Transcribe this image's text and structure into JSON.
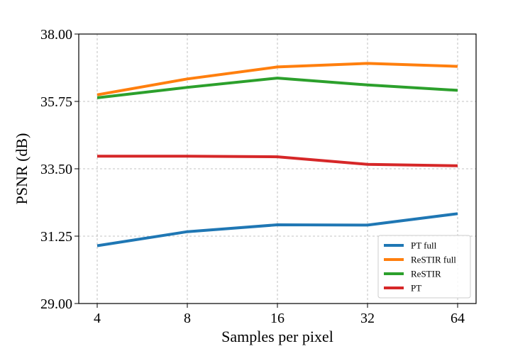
{
  "chart_data": {
    "type": "line",
    "title": "",
    "xlabel": "Samples per pixel",
    "ylabel": "PSNR (dB)",
    "x_scale": "log2",
    "categories": [
      "4",
      "8",
      "16",
      "32",
      "64"
    ],
    "x": [
      4,
      8,
      16,
      32,
      64
    ],
    "ylim": [
      29.0,
      38.0
    ],
    "yticks": [
      "29.00",
      "31.25",
      "33.50",
      "35.75",
      "38.00"
    ],
    "ytick_values": [
      29.0,
      31.25,
      33.5,
      35.75,
      38.0
    ],
    "grid": true,
    "legend_position": "lower-right",
    "series": [
      {
        "name": "PT full",
        "color": "#1f77b4",
        "values": [
          30.93,
          31.4,
          31.63,
          31.62,
          32.0
        ]
      },
      {
        "name": "ReSTIR full",
        "color": "#ff7f0e",
        "values": [
          35.97,
          36.5,
          36.9,
          37.02,
          36.92
        ]
      },
      {
        "name": "ReSTIR",
        "color": "#2ca02c",
        "values": [
          35.87,
          36.22,
          36.53,
          36.3,
          36.12
        ]
      },
      {
        "name": "PT",
        "color": "#d62728",
        "values": [
          33.92,
          33.92,
          33.9,
          33.65,
          33.6
        ]
      }
    ]
  }
}
